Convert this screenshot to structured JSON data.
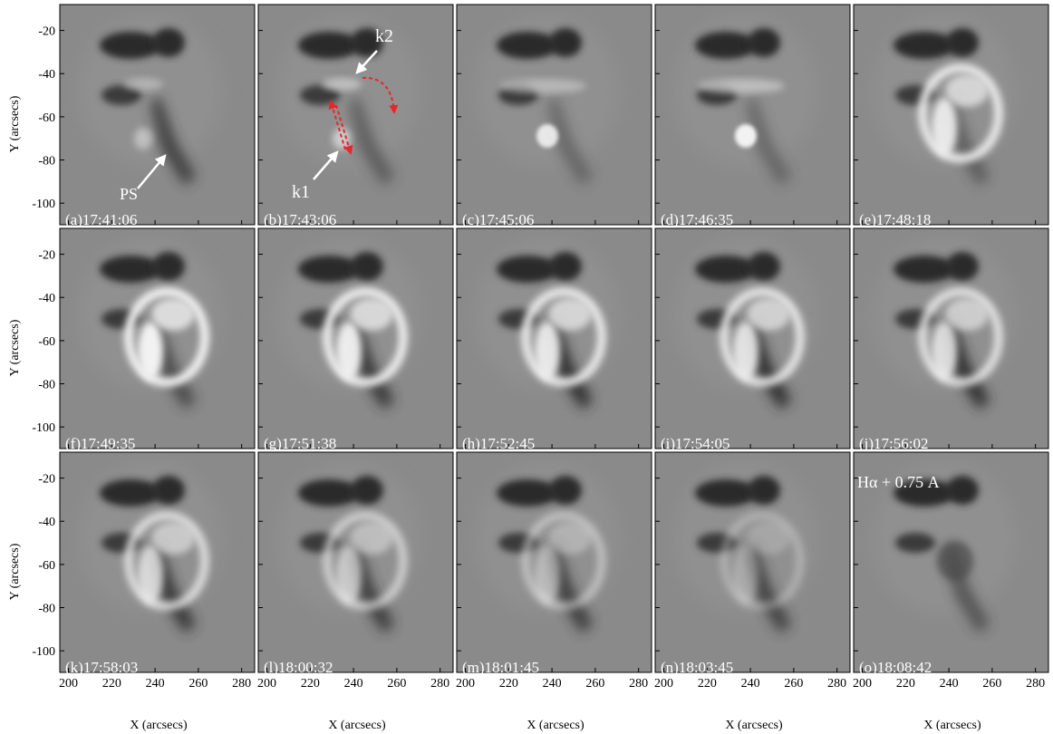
{
  "figure": {
    "y_axis_label": "Y (arcsecs)",
    "x_axis_label": "X (arcsecs)",
    "y_ticks": [
      "-20",
      "-40",
      "-60",
      "-80",
      "-100"
    ],
    "x_ticks": [
      "200",
      "220",
      "240",
      "260",
      "280"
    ],
    "panels": [
      {
        "label": "(a)17:41:06"
      },
      {
        "label": "(b)17:43:06"
      },
      {
        "label": "(c)17:45:06"
      },
      {
        "label": "(d)17:46:35"
      },
      {
        "label": "(e)17:48:18"
      },
      {
        "label": "(f)17:49:35"
      },
      {
        "label": "(g)17:51:38"
      },
      {
        "label": "(h)17:52:45"
      },
      {
        "label": "(i)17:54:05"
      },
      {
        "label": "(j)17:56:02"
      },
      {
        "label": "(k)17:58:03"
      },
      {
        "label": "(l)18:00:32"
      },
      {
        "label": "(m)18:01:45"
      },
      {
        "label": "(n)18:03:45"
      },
      {
        "label": "(o)18:08:42"
      }
    ],
    "annotations": {
      "ps": "PS",
      "k1": "k1",
      "k2": "k2",
      "halpha": "Hα + 0.75 A"
    },
    "colors": {
      "background_gray": "#8a8a8a",
      "dark_feature": "#2c2c2c",
      "bright_feature": "#f2f2f2",
      "arrow_white": "#ffffff",
      "arrow_red": "#e8262a"
    }
  }
}
